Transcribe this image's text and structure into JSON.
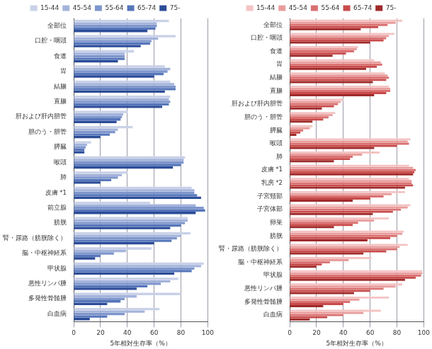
{
  "chart_data": [
    {
      "type": "bar",
      "orientation": "horizontal",
      "xlabel": "5年相対生存率（%）",
      "categories": [
        "全部位",
        "口腔・咽頭",
        "食道",
        "胃",
        "結腸",
        "直腸",
        "肝および肝内胆管",
        "胆のう・胆管",
        "膵臓",
        "喉頭",
        "肺",
        "皮膚 *1",
        "前立腺",
        "膀胱",
        "腎・尿路（膀胱除く）",
        "脳・中枢神経系",
        "甲状腺",
        "悪性リンパ腫",
        "多発性骨髄腫",
        "白血病"
      ],
      "series": [
        {
          "name": "15-44",
          "color": "#c9d1e8",
          "values": [
            71,
            76,
            45,
            68,
            72,
            72,
            40,
            44,
            13,
            83,
            40,
            88,
            57,
            85,
            87,
            58,
            97,
            78,
            80,
            64
          ]
        },
        {
          "name": "45-54",
          "color": "#a3b3db",
          "values": [
            62,
            63,
            38,
            72,
            75,
            71,
            37,
            33,
            10,
            82,
            36,
            90,
            91,
            85,
            80,
            39,
            95,
            72,
            47,
            53
          ]
        },
        {
          "name": "55-64",
          "color": "#7f96cc",
          "values": [
            62,
            58,
            38,
            70,
            76,
            72,
            36,
            31,
            9,
            82,
            33,
            90,
            97,
            83,
            77,
            30,
            90,
            65,
            38,
            38
          ]
        },
        {
          "name": "65-74",
          "color": "#5676ba",
          "values": [
            61,
            57,
            38,
            67,
            76,
            71,
            35,
            27,
            8,
            80,
            28,
            92,
            98,
            80,
            73,
            20,
            88,
            55,
            35,
            25
          ]
        },
        {
          "name": "75-",
          "color": "#2c4c98",
          "values": [
            55,
            50,
            33,
            60,
            68,
            66,
            32,
            20,
            8,
            74,
            20,
            95,
            91,
            72,
            60,
            16,
            75,
            47,
            25,
            12
          ]
        }
      ],
      "xlim": [
        0,
        100
      ],
      "xticks": [
        0,
        20,
        40,
        60,
        80,
        100
      ],
      "grid": true,
      "legend": "top"
    },
    {
      "type": "bar",
      "orientation": "horizontal",
      "xlabel": "5年相対生存率（%）",
      "categories": [
        "全部位",
        "口腔・咽頭",
        "食道",
        "胃",
        "結腸",
        "直腸",
        "肝および肝内胆管",
        "胆のう・胆管",
        "膵臓",
        "喉頭",
        "肺",
        "皮膚 *1",
        "乳房 *2",
        "子宮頸部",
        "子宮体部",
        "卵巣",
        "膀胱",
        "腎・尿路（膀胱除く）",
        "脳・中枢神経系",
        "甲状腺",
        "悪性リンパ腫",
        "多発性骨髄腫",
        "白血病"
      ],
      "series": [
        {
          "name": "15-44",
          "color": "#f4c3c3",
          "values": [
            84,
            78,
            51,
            63,
            71,
            74,
            40,
            34,
            17,
            90,
            67,
            89,
            89,
            86,
            90,
            74,
            85,
            88,
            61,
            99,
            84,
            74,
            68
          ]
        },
        {
          "name": "45-54",
          "color": "#e99d9d",
          "values": [
            79,
            74,
            50,
            68,
            73,
            75,
            38,
            32,
            15,
            88,
            54,
            92,
            91,
            76,
            88,
            63,
            84,
            82,
            44,
            99,
            79,
            52,
            55
          ]
        },
        {
          "name": "55-64",
          "color": "#da7070",
          "values": [
            73,
            72,
            48,
            69,
            74,
            75,
            36,
            29,
            10,
            89,
            47,
            94,
            91,
            70,
            83,
            51,
            80,
            80,
            30,
            98,
            70,
            45,
            40
          ]
        },
        {
          "name": "65-74",
          "color": "#c84a4a",
          "values": [
            66,
            70,
            42,
            65,
            72,
            72,
            33,
            25,
            8,
            80,
            45,
            93,
            92,
            60,
            77,
            47,
            75,
            72,
            24,
            94,
            60,
            40,
            28
          ]
        },
        {
          "name": "75-",
          "color": "#a02a2a",
          "values": [
            53,
            60,
            32,
            57,
            62,
            63,
            24,
            17,
            5,
            63,
            33,
            92,
            86,
            47,
            62,
            33,
            58,
            55,
            20,
            86,
            48,
            25,
            15
          ]
        }
      ],
      "xlim": [
        0,
        100
      ],
      "xticks": [
        0,
        20,
        40,
        60,
        80,
        100
      ],
      "grid": true,
      "legend": "top"
    }
  ]
}
